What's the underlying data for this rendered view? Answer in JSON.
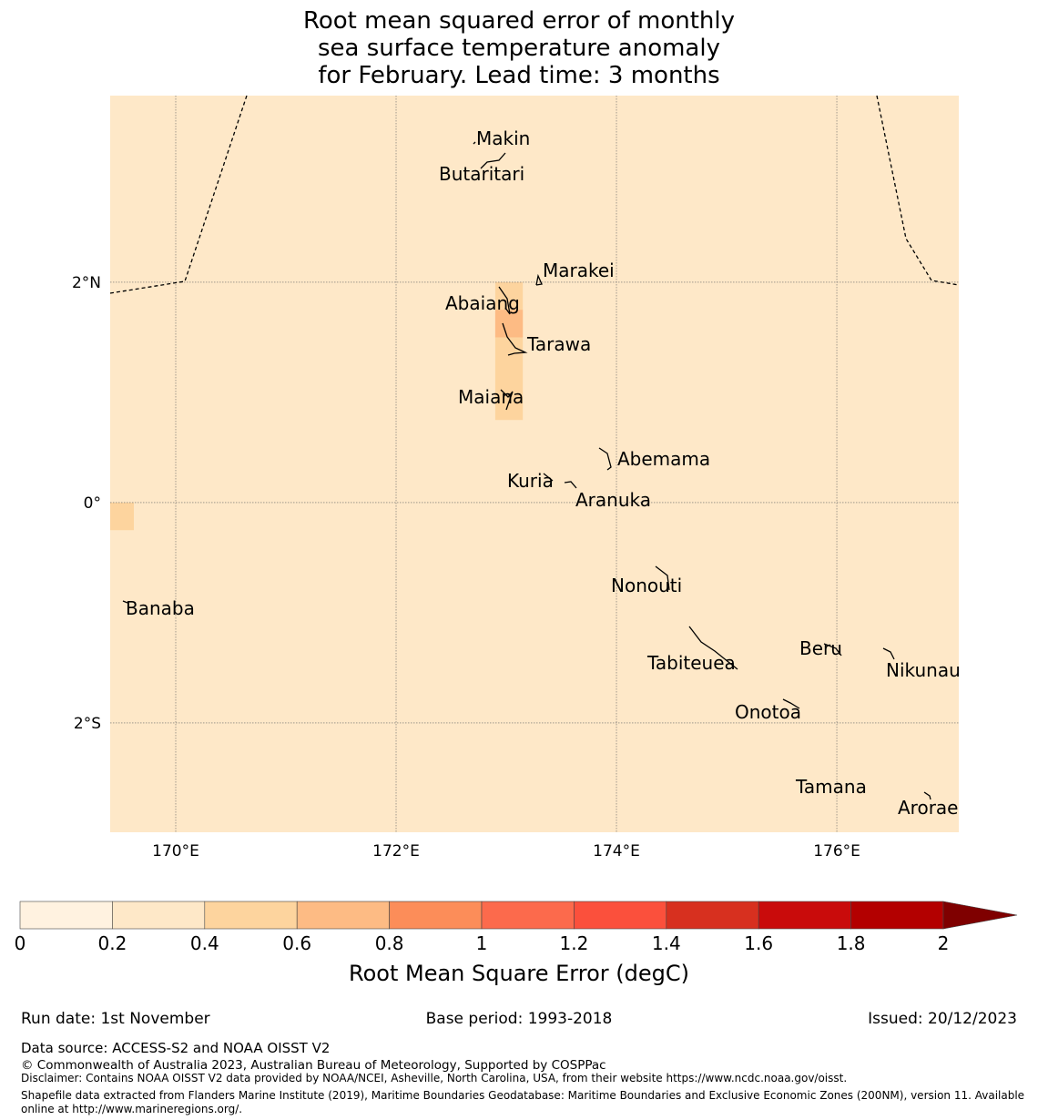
{
  "chart_data": {
    "type": "heatmap",
    "title": [
      "Root mean squared error of monthly",
      "sea surface temperature anomaly",
      "for February. Lead time: 3 months"
    ],
    "map_extent": {
      "lon": [
        169.405,
        177.107
      ],
      "lat": [
        -2.992,
        3.694
      ]
    },
    "background_value_bin": "0.2-0.4",
    "cells": [
      {
        "lon": [
          172.9,
          173.15
        ],
        "lat": [
          1.5,
          2.0
        ],
        "bin": "0.4-0.6"
      },
      {
        "lon": [
          172.9,
          173.15
        ],
        "lat": [
          1.5,
          1.75
        ],
        "bin": "0.6-0.8"
      },
      {
        "lon": [
          172.9,
          173.15
        ],
        "lat": [
          0.75,
          1.5
        ],
        "bin": "0.4-0.6"
      },
      {
        "lon": [
          169.405,
          169.62
        ],
        "lat": [
          -0.25,
          0.0
        ],
        "bin": "0.4-0.6"
      }
    ],
    "lat_ticks": [
      {
        "v": 2,
        "label": "2°N"
      },
      {
        "v": 0,
        "label": "0°"
      },
      {
        "v": -2,
        "label": "2°S"
      }
    ],
    "lon_ticks": [
      {
        "v": 170,
        "label": "170°E"
      },
      {
        "v": 172,
        "label": "172°E"
      },
      {
        "v": 174,
        "label": "174°E"
      },
      {
        "v": 176,
        "label": "176°E"
      }
    ],
    "islands": [
      {
        "name": "Makin"
      },
      {
        "name": "Butaritari"
      },
      {
        "name": "Marakei"
      },
      {
        "name": "Abaiang"
      },
      {
        "name": "Tarawa"
      },
      {
        "name": "Maiana"
      },
      {
        "name": "Abemama"
      },
      {
        "name": "Kuria"
      },
      {
        "name": "Aranuka"
      },
      {
        "name": "Banaba"
      },
      {
        "name": "Nonouti"
      },
      {
        "name": "Tabiteuea"
      },
      {
        "name": "Beru"
      },
      {
        "name": "Nikunau"
      },
      {
        "name": "Onotoa"
      },
      {
        "name": "Tamana"
      },
      {
        "name": "Arorae"
      }
    ],
    "colorbar": {
      "label": "Root Mean Square Error (degC)",
      "ticks": [
        "0",
        "0.2",
        "0.4",
        "0.6",
        "0.8",
        "1",
        "1.2",
        "1.4",
        "1.6",
        "1.8",
        "2"
      ],
      "colors": [
        "#fff2e0",
        "#fee8c8",
        "#fdd49e",
        "#fdbb84",
        "#fc8d59",
        "#fc6a4c",
        "#fb503c",
        "#d7301f",
        "#c90b0b",
        "#b30000"
      ],
      "extend_color": "#7f0000",
      "range": [
        0,
        2
      ],
      "extend": "max"
    }
  },
  "footer": {
    "run_date": "Run date: 1st November",
    "base_period": "Base period: 1993-2018",
    "issued": "Issued: 20/12/2023",
    "data_source": "Data source: ACCESS-S2 and NOAA OISST V2",
    "copyright": "© Commonwealth of Australia 2023, Australian Bureau of Meteorology, Supported by COSPPac",
    "disclaimer": "Disclaimer: Contains NOAA OISST V2 data provided by NOAA/NCEI, Asheville, North Carolina, USA, from their website https://www.ncdc.noaa.gov/oisst.",
    "shapefile_1": "Shapefile data extracted from Flanders Marine Institute (2019), Maritime Boundaries Geodatabase: Maritime Boundaries and Exclusive Economic Zones (200NM), version 11. Available",
    "shapefile_2": "online at http://www.marineregions.org/."
  }
}
